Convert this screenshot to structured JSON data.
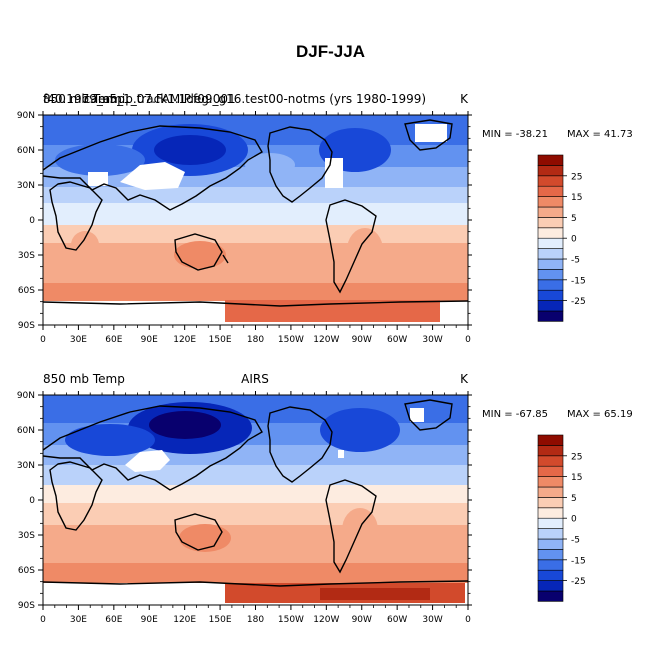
{
  "title": "DJF-JJA",
  "units": "K",
  "colorbar": {
    "colors": [
      "#08006e",
      "#0626b8",
      "#1848d8",
      "#3a6ee6",
      "#6292f0",
      "#90b4f6",
      "#bad2fa",
      "#e2eefd",
      "#fdece0",
      "#fbcdb4",
      "#f5aa8a",
      "#ef8a66",
      "#e56848",
      "#d24a2c",
      "#b22a14",
      "#8e0c00"
    ],
    "tick_labels": [
      "25",
      "15",
      "5",
      "0",
      "-5",
      "-15",
      "-25"
    ]
  },
  "chart_data": [
    {
      "type": "heatmap",
      "title": "850 mb Temp",
      "subtitle": "f40.1979_amip.track1.1deg.001",
      "dataset": "cam5_1_07.FAMIP.f09_g16.test00-notms (yrs 1980-1999)",
      "units": "K",
      "min_label": "MIN = -38.21",
      "max_label": "MAX =  41.73",
      "min": -38.21,
      "max": 41.73,
      "x_ticks": [
        "0",
        "30E",
        "60E",
        "90E",
        "120E",
        "150E",
        "180",
        "150W",
        "120W",
        "90W",
        "60W",
        "30W",
        "0"
      ],
      "y_ticks": [
        "90N",
        "60N",
        "30N",
        "0",
        "30S",
        "60S",
        "90S"
      ],
      "xlim": [
        0,
        360
      ],
      "ylim": [
        -90,
        90
      ]
    },
    {
      "type": "heatmap",
      "title": "850 mb Temp",
      "dataset": "AIRS",
      "units": "K",
      "min_label": "MIN = -67.85",
      "max_label": "MAX =  65.19",
      "min": -67.85,
      "max": 65.19,
      "x_ticks": [
        "0",
        "30E",
        "60E",
        "90E",
        "120E",
        "150E",
        "180",
        "150W",
        "120W",
        "90W",
        "60W",
        "30W",
        "0"
      ],
      "y_ticks": [
        "90N",
        "60N",
        "30N",
        "0",
        "30S",
        "60S",
        "90S"
      ],
      "xlim": [
        0,
        360
      ],
      "ylim": [
        -90,
        90
      ]
    }
  ]
}
